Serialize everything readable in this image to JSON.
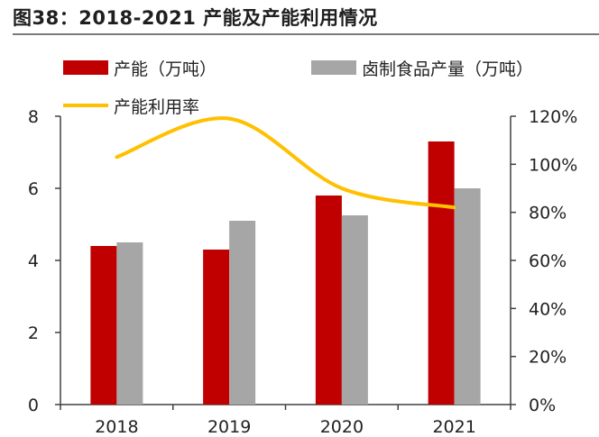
{
  "figure": {
    "title": "图38：2018-2021 产能及产能利用情况"
  },
  "chart_data": {
    "type": "bar",
    "categories": [
      "2018",
      "2019",
      "2020",
      "2021"
    ],
    "series": [
      {
        "name": "产能（万吨）",
        "kind": "bar",
        "axis": "left",
        "color": "#C00000",
        "values": [
          4.4,
          4.3,
          5.8,
          7.3
        ]
      },
      {
        "name": "卤制食品产量（万吨）",
        "kind": "bar",
        "axis": "left",
        "color": "#A6A6A6",
        "values": [
          4.5,
          5.1,
          5.25,
          6.0
        ]
      },
      {
        "name": "产能利用率",
        "kind": "line",
        "axis": "right",
        "color": "#FFC000",
        "values": [
          1.03,
          1.19,
          0.9,
          0.82
        ]
      }
    ],
    "left_axis": {
      "ylim": [
        0,
        8
      ],
      "ticks": [
        "0",
        "2",
        "4",
        "6",
        "8"
      ]
    },
    "right_axis": {
      "ylim": [
        0,
        1.2
      ],
      "ticks": [
        "0%",
        "20%",
        "40%",
        "60%",
        "80%",
        "100%",
        "120%"
      ]
    },
    "grid": false,
    "legend": "top"
  }
}
